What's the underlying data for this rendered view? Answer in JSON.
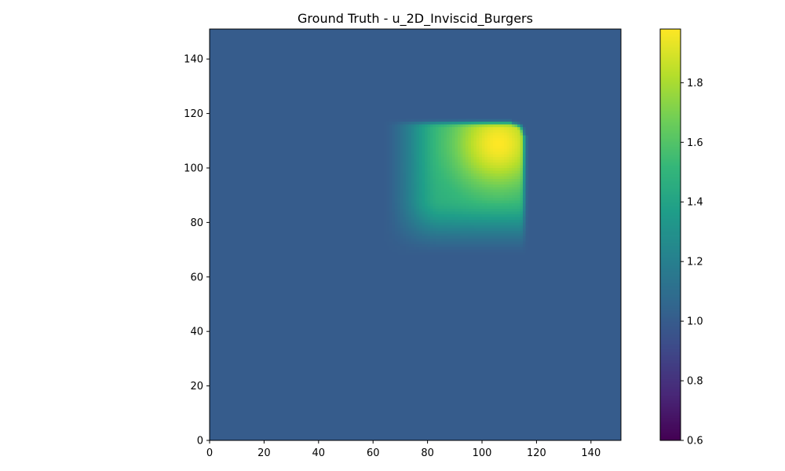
{
  "chart_data": {
    "type": "heatmap",
    "title": "Ground Truth - u_2D_Inviscid_Burgers",
    "xlabel": "",
    "ylabel": "",
    "xlim": [
      0,
      151
    ],
    "ylim": [
      0,
      151
    ],
    "x_ticks": [
      0,
      20,
      40,
      60,
      80,
      100,
      120,
      140
    ],
    "y_ticks": [
      0,
      20,
      40,
      60,
      80,
      100,
      120,
      140
    ],
    "x_tick_labels": [
      "0",
      "20",
      "40",
      "60",
      "80",
      "100",
      "120",
      "140"
    ],
    "y_tick_labels": [
      "0",
      "20",
      "40",
      "60",
      "80",
      "100",
      "120",
      "140"
    ],
    "colormap": "viridis",
    "colorbar": {
      "vmin": 0.6,
      "vmax": 1.98,
      "ticks": [
        0.6,
        0.8,
        1.0,
        1.2,
        1.4,
        1.6,
        1.8
      ],
      "tick_labels": [
        "0.6",
        "0.8",
        "1.0",
        "1.2",
        "1.4",
        "1.6",
        "1.8"
      ]
    },
    "field": {
      "background_value": 1.0,
      "region": {
        "sharp_right_edge_x": 116,
        "sharp_top_edge_y": 117,
        "diffuse_left_edge_x": 63,
        "diffuse_bottom_edge_y": 67,
        "peak_value": 1.98,
        "peak_location": [
          106,
          109
        ],
        "plateau_value": 1.45,
        "corner_radius": 5
      }
    },
    "grid": false
  }
}
